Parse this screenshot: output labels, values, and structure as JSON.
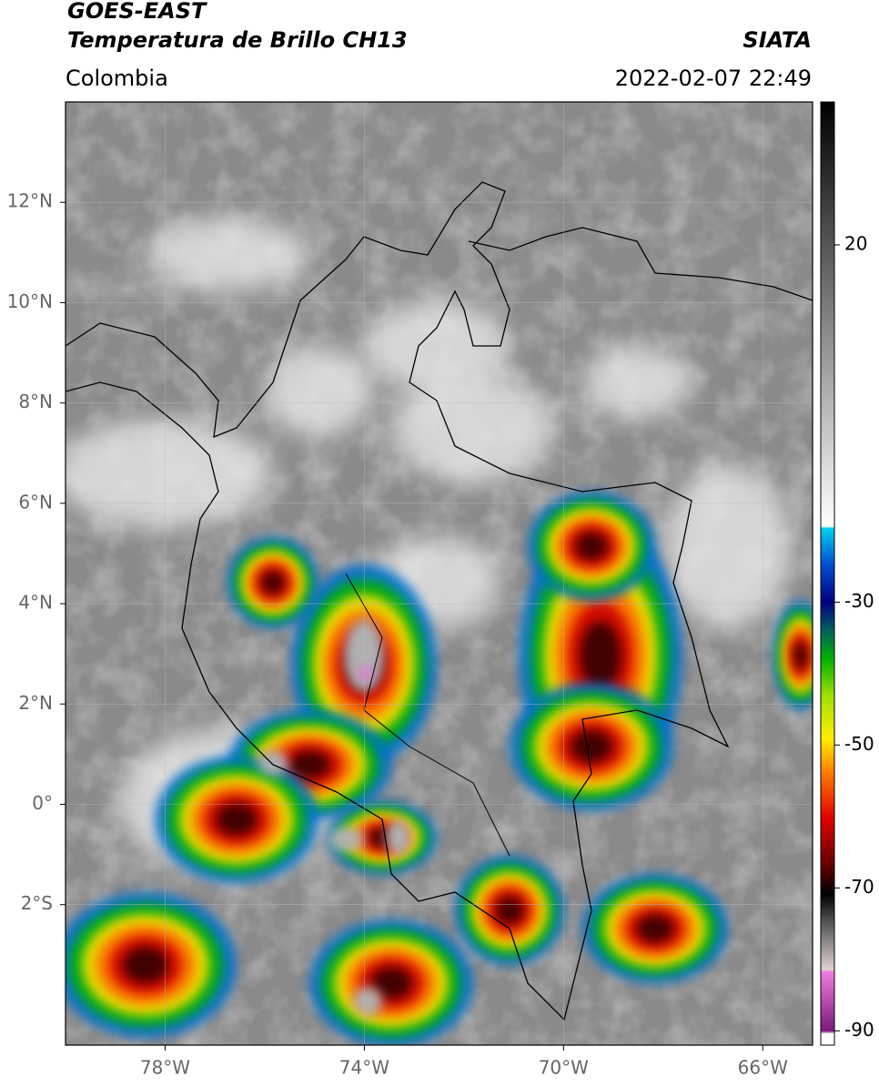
{
  "header": {
    "title_1": "GOES-EAST",
    "title_2": "Temperatura de Brillo CH13",
    "source": "SIATA",
    "region": "Colombia",
    "datetime": "2022-02-07 22:49"
  },
  "map": {
    "xlim": [
      -80,
      -65
    ],
    "ylim": [
      -4.8,
      14
    ],
    "lon_ticks": [
      {
        "value": -78,
        "label": "78°W"
      },
      {
        "value": -74,
        "label": "74°W"
      },
      {
        "value": -70,
        "label": "70°W"
      },
      {
        "value": -66,
        "label": "66°W"
      }
    ],
    "lat_ticks": [
      {
        "value": 12,
        "label": "12°N"
      },
      {
        "value": 10,
        "label": "10°N"
      },
      {
        "value": 8,
        "label": "8°N"
      },
      {
        "value": 6,
        "label": "6°N"
      },
      {
        "value": 4,
        "label": "4°N"
      },
      {
        "value": 2,
        "label": "2°N"
      },
      {
        "value": 0,
        "label": "0°"
      },
      {
        "value": -2,
        "label": "2°S"
      }
    ],
    "grid": true
  },
  "colorbar": {
    "clim": [
      -92,
      40
    ],
    "ticks": [
      20,
      -30,
      -50,
      -70,
      -90
    ]
  }
}
